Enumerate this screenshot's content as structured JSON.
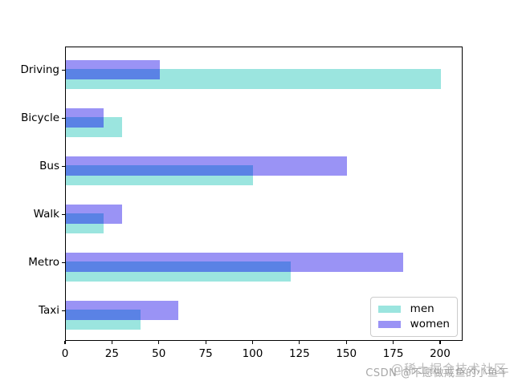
{
  "chart_data": {
    "type": "bar",
    "orientation": "horizontal",
    "title": "",
    "xlabel": "",
    "ylabel": "",
    "categories": [
      "Driving",
      "Bicycle",
      "Bus",
      "Walk",
      "Metro",
      "Taxi"
    ],
    "series": [
      {
        "name": "men",
        "color": "#9BE5DF",
        "values": [
          200,
          30,
          100,
          20,
          120,
          40
        ]
      },
      {
        "name": "women",
        "color": "#9A93F5",
        "values": [
          50,
          20,
          150,
          30,
          180,
          60
        ]
      }
    ],
    "overlap_color": "#5A82E5",
    "x_ticks": [
      0,
      25,
      50,
      75,
      100,
      125,
      150,
      175,
      200
    ],
    "xlim": [
      0,
      212
    ],
    "grid": false,
    "legend": {
      "position": "lower right",
      "entries": [
        "men",
        "women"
      ]
    },
    "spine_color": "#000000"
  },
  "watermark": {
    "csdn_text": "CSDN @不愿做咸鱼的小鱼干",
    "juejin_text": "@稀土掘金技术社区"
  }
}
